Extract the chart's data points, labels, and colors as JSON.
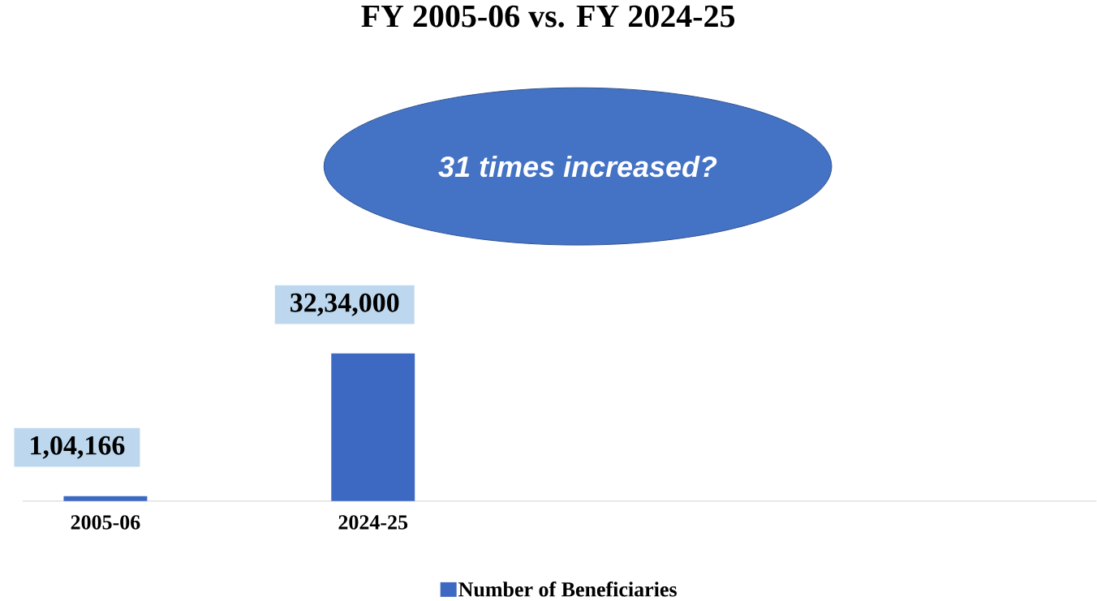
{
  "chart_data": {
    "type": "bar",
    "title": "FY 2005-06 vs. FY 2024-25",
    "categories": [
      "2005-06",
      "2024-25"
    ],
    "series": [
      {
        "name": "Number of Beneficiaries",
        "color": "#3d69c2",
        "values": [
          104166,
          3234000
        ],
        "value_labels": [
          "1,04,166",
          "32,34,000"
        ]
      }
    ],
    "annotations": [
      "31 times increased?"
    ],
    "legend": "bottom"
  }
}
